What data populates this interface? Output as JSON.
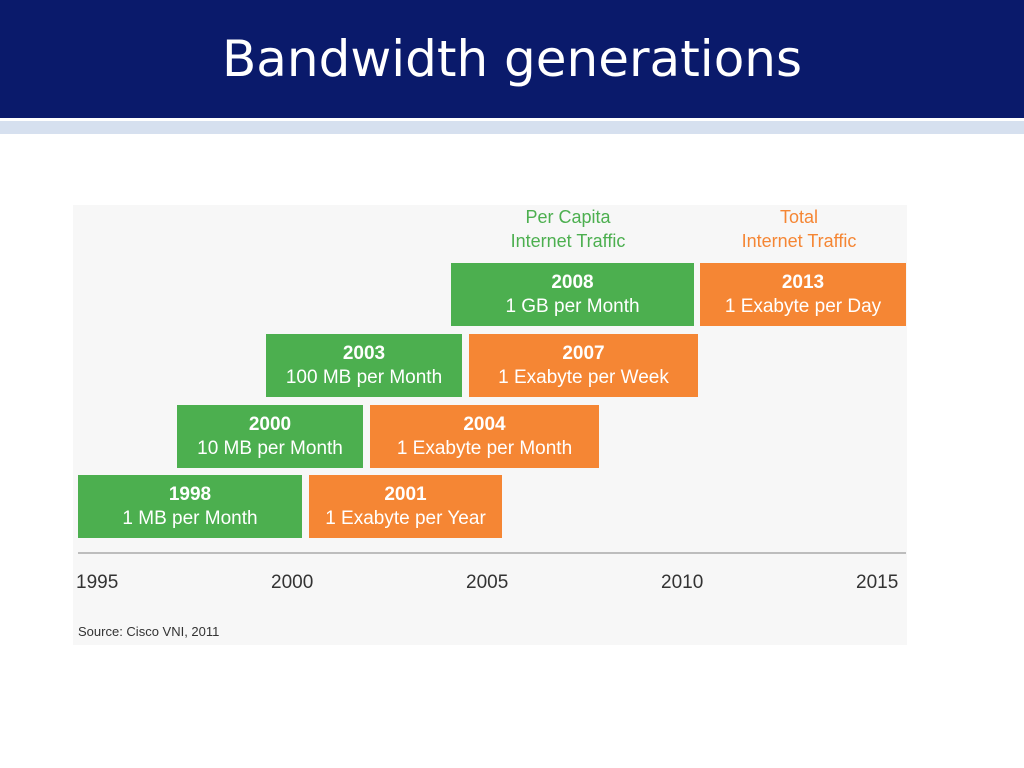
{
  "slide": {
    "title": "Bandwidth generations",
    "title_bar_color": "#0a1a6b"
  },
  "chart_data": {
    "type": "timeline",
    "columns": [
      {
        "name": "Per Capita Internet Traffic",
        "line1": "Per Capita",
        "line2": "Internet Traffic",
        "color": "#4caf4f"
      },
      {
        "name": "Total Internet Traffic",
        "line1": "Total",
        "line2": "Internet Traffic",
        "color": "#f58634"
      }
    ],
    "per_capita": [
      {
        "year": "1998",
        "label": "1 MB per Month"
      },
      {
        "year": "2000",
        "label": "10 MB per Month"
      },
      {
        "year": "2003",
        "label": "100 MB per Month"
      },
      {
        "year": "2008",
        "label": "1 GB per Month"
      }
    ],
    "total": [
      {
        "year": "2001",
        "label": "1 Exabyte per Year"
      },
      {
        "year": "2004",
        "label": "1 Exabyte per Month"
      },
      {
        "year": "2007",
        "label": "1 Exabyte per Week"
      },
      {
        "year": "2013",
        "label": "1 Exabyte per Day"
      }
    ],
    "x_ticks": [
      "1995",
      "2000",
      "2005",
      "2010",
      "2015"
    ],
    "xlim": [
      1995,
      2015
    ],
    "source": "Source: Cisco VNI, 2011"
  }
}
